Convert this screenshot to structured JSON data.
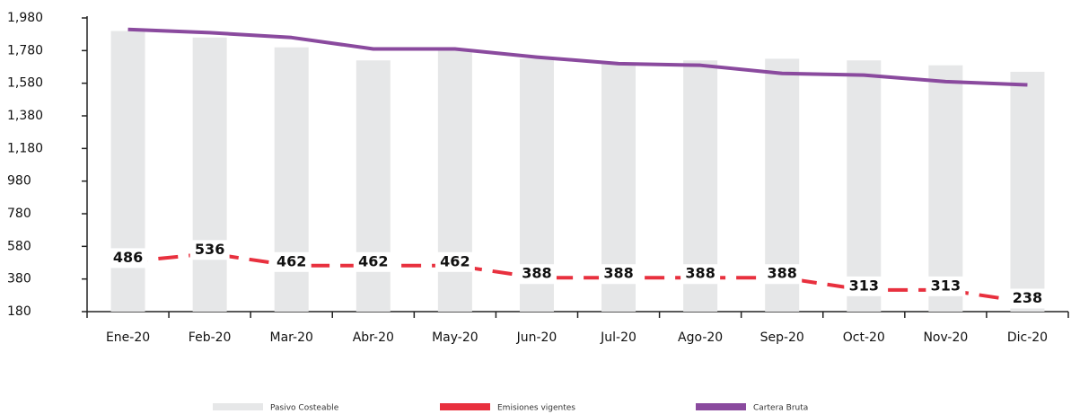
{
  "chart_data": {
    "type": "bar-line",
    "categories": [
      "Ene-20",
      "Feb-20",
      "Mar-20",
      "Abr-20",
      "May-20",
      "Jun-20",
      "Jul-20",
      "Ago-20",
      "Sep-20",
      "Oct-20",
      "Nov-20",
      "Dic-20"
    ],
    "series": [
      {
        "name": "Pasivo Costeable",
        "color": "#e6e7e8",
        "kind": "bar",
        "values": [
          1900,
          1860,
          1800,
          1720,
          1780,
          1730,
          1700,
          1720,
          1730,
          1720,
          1690,
          1650
        ]
      },
      {
        "name": "Emisiones vigentes",
        "color": "#e8303e",
        "kind": "dashed-line",
        "values": [
          486,
          536,
          462,
          462,
          462,
          388,
          388,
          388,
          388,
          313,
          313,
          238
        ]
      },
      {
        "name": "Cartera Bruta",
        "color": "#8a4a9e",
        "kind": "line",
        "values": [
          1910,
          1890,
          1860,
          1790,
          1790,
          1740,
          1700,
          1690,
          1640,
          1630,
          1590,
          1570
        ]
      }
    ],
    "ylim": [
      180,
      1980
    ],
    "yticks": [
      180,
      380,
      580,
      780,
      980,
      {
        "value": 1180,
        "label": "1,180"
      },
      {
        "value": 1380,
        "label": "1,380"
      },
      {
        "value": 1580,
        "label": "1,580"
      },
      {
        "value": 1780,
        "label": "1,780"
      },
      {
        "value": 1980,
        "label": "1,980"
      }
    ]
  }
}
